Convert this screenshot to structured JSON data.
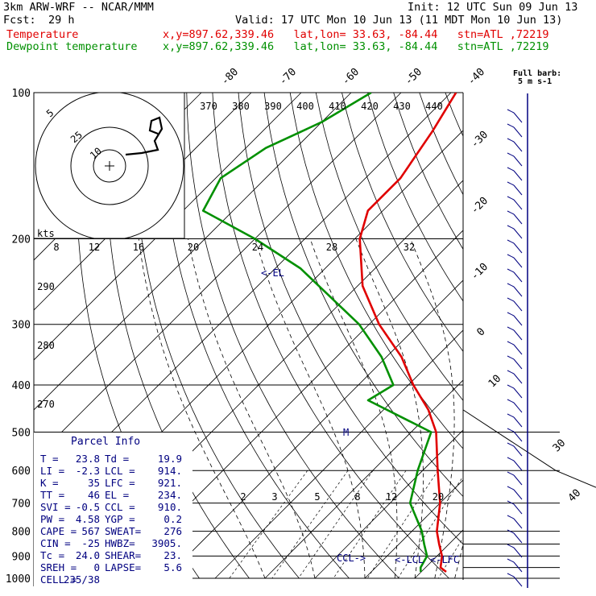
{
  "header": {
    "model": "3km ARW-WRF -- NCAR/MMM",
    "init": "Init: 12 UTC Sun 09 Jun 13",
    "fcst_label": "Fcst:",
    "fcst_value": "29 h",
    "valid": "Valid: 17 UTC Mon 10 Jun 13 (11 MDT Mon 10 Jun 13)",
    "temp_label": "Temperature",
    "temp_loc": "x,y=897.62,339.46   lat,lon= 33.63, -84.44   stn=ATL ,72219",
    "dew_label": "Dewpoint temperature",
    "dew_loc": "x,y=897.62,339.46   lat,lon= 33.63, -84.44   stn=ATL ,72219"
  },
  "colors": {
    "temperature": "#e00000",
    "dewpoint": "#009000",
    "parcel_info": "#000080",
    "isotherm_label": "#000000"
  },
  "chart_data": {
    "type": "line",
    "chart_kind": "skew-T log-P sounding",
    "pressure_levels": [
      100,
      200,
      300,
      400,
      500,
      600,
      700,
      800,
      900,
      1000
    ],
    "isotherm_labels": [
      "-80",
      "-70",
      "-60",
      "-50",
      "-40",
      "-30",
      "-20",
      "-10",
      "0",
      "10",
      "30",
      "40"
    ],
    "theta_labels": [
      "370",
      "380",
      "390",
      "400",
      "410",
      "420",
      "430",
      "440"
    ],
    "theta_low_labels": [
      "290",
      "280",
      "270"
    ],
    "mixing_ratio_labels": [
      "2",
      "3",
      "5",
      "8",
      "12",
      "20"
    ],
    "hodograph": {
      "ring_labels": [
        "5",
        "25",
        "10"
      ],
      "kts_label": "kts",
      "speed_labels": [
        "8",
        "12",
        "16",
        "20",
        "24",
        "28",
        "32"
      ]
    },
    "wind_barb_legend": [
      "Full barb:",
      "5 m s-1"
    ],
    "series": [
      {
        "name": "Temperature",
        "points": [
          {
            "p": 100,
            "t": -69
          },
          {
            "p": 120,
            "t": -66
          },
          {
            "p": 150,
            "t": -63
          },
          {
            "p": 175,
            "t": -63
          },
          {
            "p": 200,
            "t": -59
          },
          {
            "p": 250,
            "t": -49
          },
          {
            "p": 300,
            "t": -38
          },
          {
            "p": 350,
            "t": -27
          },
          {
            "p": 400,
            "t": -19
          },
          {
            "p": 450,
            "t": -11
          },
          {
            "p": 500,
            "t": -5
          },
          {
            "p": 600,
            "t": 3
          },
          {
            "p": 700,
            "t": 10
          },
          {
            "p": 800,
            "t": 15
          },
          {
            "p": 850,
            "t": 18
          },
          {
            "p": 900,
            "t": 21
          },
          {
            "p": 950,
            "t": 23
          },
          {
            "p": 970,
            "t": 25
          }
        ]
      },
      {
        "name": "Dewpoint temperature",
        "points": [
          {
            "p": 100,
            "t": -86
          },
          {
            "p": 115,
            "t": -90
          },
          {
            "p": 130,
            "t": -96
          },
          {
            "p": 150,
            "t": -99
          },
          {
            "p": 175,
            "t": -96
          },
          {
            "p": 200,
            "t": -80
          },
          {
            "p": 230,
            "t": -65
          },
          {
            "p": 300,
            "t": -42
          },
          {
            "p": 350,
            "t": -31
          },
          {
            "p": 400,
            "t": -23
          },
          {
            "p": 430,
            "t": -25
          },
          {
            "p": 500,
            "t": -6
          },
          {
            "p": 600,
            "t": -1
          },
          {
            "p": 700,
            "t": 4
          },
          {
            "p": 800,
            "t": 12
          },
          {
            "p": 850,
            "t": 15
          },
          {
            "p": 900,
            "t": 18
          },
          {
            "p": 950,
            "t": 19
          },
          {
            "p": 970,
            "t": 19.9
          }
        ]
      }
    ],
    "level_markers": [
      "<-EL",
      "M",
      "CCL->",
      "<-LCL",
      "<-LFC"
    ],
    "parcel_info": {
      "title": "Parcel Info",
      "rows": [
        [
          "T   =",
          "23.8",
          "Td  =",
          "19.9"
        ],
        [
          "LI  =",
          "-2.3",
          "LCL =",
          "914."
        ],
        [
          "K   =",
          "35",
          "LFC =",
          "921."
        ],
        [
          "TT  =",
          "46",
          "EL  =",
          "234."
        ],
        [
          "SVI =",
          "-0.5",
          "CCL =",
          "910."
        ],
        [
          "PW  =",
          "4.58",
          "YGP =",
          "0.2"
        ],
        [
          "CAPE =",
          "567",
          "SWEAT=",
          "276"
        ],
        [
          "CIN  =",
          "-25",
          "HWBZ=",
          "3905."
        ],
        [
          "Tc  =",
          "24.0",
          "SHEAR=",
          "23."
        ],
        [
          "SREH =",
          "0",
          "LAPSE=",
          "5.6"
        ],
        [
          "CELL =",
          "235/38",
          "",
          ""
        ]
      ]
    }
  }
}
